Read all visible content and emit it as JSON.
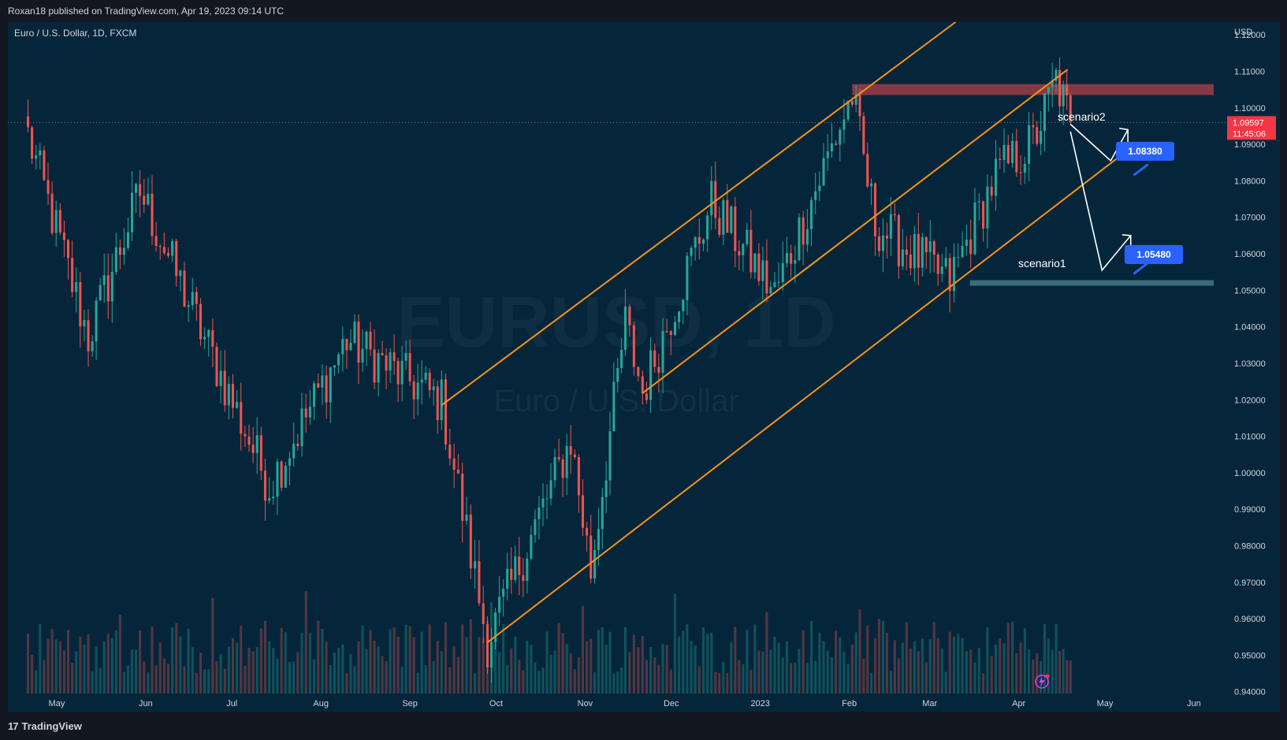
{
  "header": {
    "published": "Roxan18 published on TradingView.com, Apr 19, 2023 09:14 UTC"
  },
  "footer": {
    "brand": "TradingView",
    "brand_mark": "17"
  },
  "chart_data": {
    "type": "candlestick",
    "title": "Euro / U.S. Dollar, 1D, FXCM",
    "watermark_symbol": "EURUSD, 1D",
    "watermark_name": "Euro / U.S. Dollar",
    "currency_label": "USD",
    "y_ticks": [
      "1.12000",
      "1.11000",
      "1.10000",
      "1.09000",
      "1.08000",
      "1.07000",
      "1.06000",
      "1.05000",
      "1.04000",
      "1.03000",
      "1.02000",
      "1.01000",
      "1.00000",
      "0.99000",
      "0.98000",
      "0.97000",
      "0.96000",
      "0.95000",
      "0.94000"
    ],
    "ylim": [
      0.9395,
      1.1235
    ],
    "x_ticks": [
      "May",
      "Jun",
      "Jul",
      "Aug",
      "Sep",
      "Oct",
      "Nov",
      "Dec",
      "2023",
      "Feb",
      "Mar",
      "Apr",
      "May",
      "Jun"
    ],
    "current_price": "1.09597",
    "countdown": "11:45:06",
    "annotations": {
      "scenario1_label": "scenario1",
      "scenario2_label": "scenario2",
      "target1": "1.08380",
      "target2": "1.05480"
    },
    "resistance_zone": [
      1.1035,
      1.1065
    ],
    "support_level": 1.052,
    "key_points": [
      {
        "date": "2022-04-21",
        "value": 1.0925
      },
      {
        "date": "2022-05-12",
        "value": 1.037
      },
      {
        "date": "2022-05-30",
        "value": 1.077
      },
      {
        "date": "2022-07-14",
        "value": 0.9965
      },
      {
        "date": "2022-08-10",
        "value": 1.0365
      },
      {
        "date": "2022-09-12",
        "value": 1.0195
      },
      {
        "date": "2022-09-28",
        "value": 0.9535
      },
      {
        "date": "2022-10-27",
        "value": 1.009
      },
      {
        "date": "2022-11-03",
        "value": 0.973
      },
      {
        "date": "2022-11-15",
        "value": 1.041
      },
      {
        "date": "2022-11-21",
        "value": 1.022
      },
      {
        "date": "2022-12-15",
        "value": 1.074
      },
      {
        "date": "2023-01-06",
        "value": 1.049
      },
      {
        "date": "2023-02-02",
        "value": 1.1035
      },
      {
        "date": "2023-02-10",
        "value": 1.068
      },
      {
        "date": "2023-03-08",
        "value": 1.0525
      },
      {
        "date": "2023-03-24",
        "value": 1.0815
      },
      {
        "date": "2023-04-06",
        "value": 1.0905
      },
      {
        "date": "2023-04-14",
        "value": 1.1075
      },
      {
        "date": "2023-04-19",
        "value": 1.096
      }
    ],
    "colors": {
      "up": "#26a69a",
      "down": "#ef5350",
      "channel": "#f7931a",
      "resistance": "#b2404a",
      "support": "#4a7d8c",
      "target": "#2962ff",
      "price": "#f23645"
    }
  }
}
